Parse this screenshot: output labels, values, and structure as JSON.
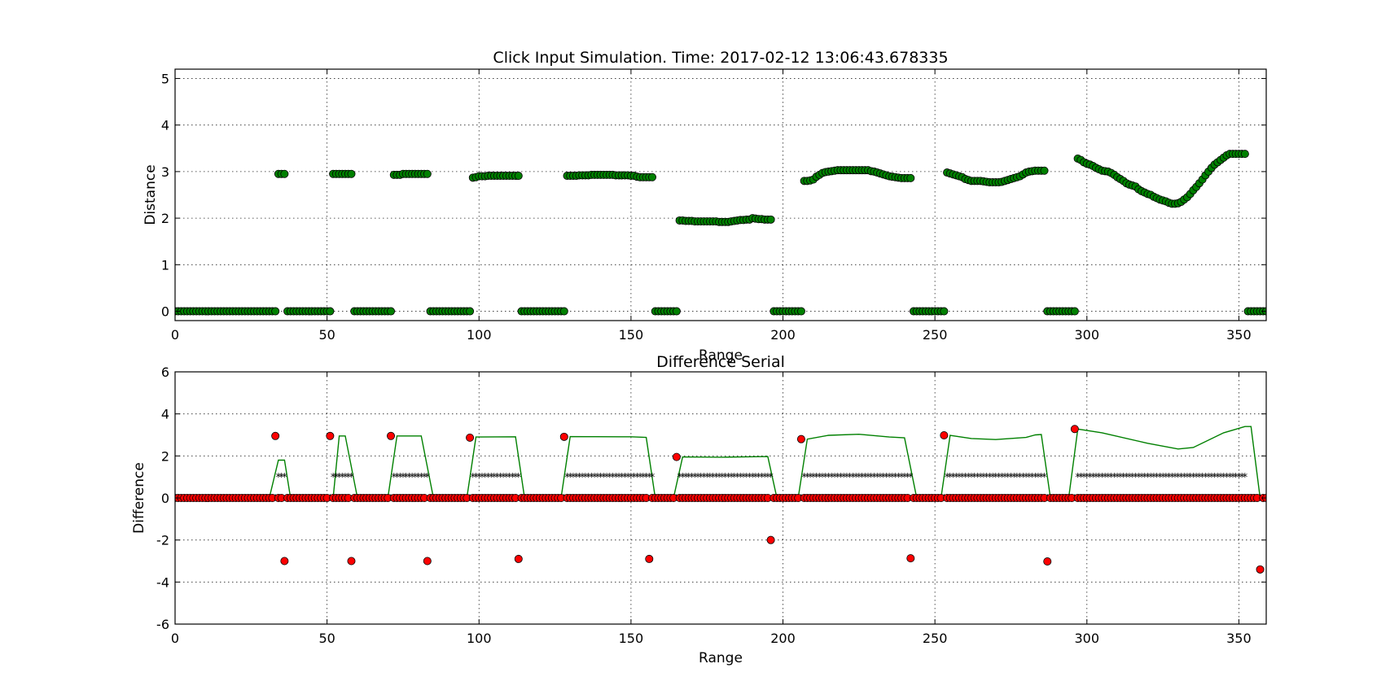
{
  "chart_data": [
    {
      "type": "scatter",
      "title": "Click Input Simulation. Time: 2017-02-12 13:06:43.678335",
      "xlabel": "Range",
      "ylabel": "Distance",
      "xlim": [
        0,
        359
      ],
      "ylim": [
        -0.2,
        5.2
      ],
      "xticks": [
        0,
        50,
        100,
        150,
        200,
        250,
        300,
        350
      ],
      "yticks": [
        0,
        1,
        2,
        3,
        4,
        5
      ],
      "grid": true,
      "series": [
        {
          "marker_color": "#008000",
          "segments": [
            {
              "kind": "const",
              "x0": 0,
              "x1": 33,
              "y": 0
            },
            {
              "kind": "const",
              "x0": 34,
              "x1": 36,
              "y": 2.95
            },
            {
              "kind": "const",
              "x0": 37,
              "x1": 51,
              "y": 0
            },
            {
              "kind": "const",
              "x0": 52,
              "x1": 58,
              "y": 2.95
            },
            {
              "kind": "const",
              "x0": 59,
              "x1": 71,
              "y": 0
            },
            {
              "kind": "points",
              "x0": 72,
              "y": [
                2.93,
                2.93,
                2.93,
                2.95,
                2.95,
                2.95,
                2.95,
                2.95,
                2.95,
                2.95,
                2.95,
                2.95
              ]
            },
            {
              "kind": "const",
              "x0": 84,
              "x1": 97,
              "y": 0
            },
            {
              "kind": "points",
              "x0": 98,
              "y": [
                2.87,
                2.88,
                2.9,
                2.9,
                2.9,
                2.91,
                2.91,
                2.91,
                2.91,
                2.91,
                2.91,
                2.91,
                2.91,
                2.91,
                2.91,
                2.91
              ]
            },
            {
              "kind": "const",
              "x0": 114,
              "x1": 128,
              "y": 0
            },
            {
              "kind": "points",
              "x0": 129,
              "y": [
                2.91,
                2.91,
                2.91,
                2.91,
                2.92,
                2.92,
                2.92,
                2.92,
                2.93,
                2.93,
                2.93,
                2.93,
                2.93,
                2.93,
                2.93,
                2.93,
                2.92,
                2.92,
                2.92,
                2.92,
                2.92,
                2.91,
                2.91,
                2.89,
                2.88,
                2.88,
                2.88,
                2.88,
                2.88
              ]
            },
            {
              "kind": "const",
              "x0": 158,
              "x1": 165,
              "y": 0
            },
            {
              "kind": "points",
              "x0": 166,
              "y": [
                1.95,
                1.95,
                1.94,
                1.94,
                1.94,
                1.93,
                1.93,
                1.93,
                1.93,
                1.93,
                1.93,
                1.93,
                1.93,
                1.92,
                1.92,
                1.92,
                1.92,
                1.93,
                1.94,
                1.95,
                1.96,
                1.96,
                1.97,
                1.97,
                2.0,
                1.99,
                1.98,
                1.98,
                1.97,
                1.97,
                1.97
              ]
            },
            {
              "kind": "const",
              "x0": 197,
              "x1": 206,
              "y": 0
            },
            {
              "kind": "points",
              "x0": 207,
              "y": [
                2.8,
                2.8,
                2.81,
                2.83,
                2.89,
                2.93,
                2.97,
                2.99,
                3.0,
                3.01,
                3.02,
                3.03,
                3.03,
                3.03,
                3.03,
                3.03,
                3.03,
                3.03,
                3.03,
                3.03,
                3.03,
                3.03,
                3.01,
                3.0,
                2.98,
                2.96,
                2.94,
                2.92,
                2.9,
                2.89,
                2.88,
                2.87,
                2.86,
                2.86,
                2.86,
                2.86
              ]
            },
            {
              "kind": "const",
              "x0": 243,
              "x1": 253,
              "y": 0
            },
            {
              "kind": "points",
              "x0": 254,
              "y": [
                2.98,
                2.96,
                2.94,
                2.92,
                2.9,
                2.88,
                2.84,
                2.82,
                2.8,
                2.8,
                2.8,
                2.8,
                2.79,
                2.78,
                2.77,
                2.77,
                2.77,
                2.77,
                2.78,
                2.8,
                2.82,
                2.84,
                2.86,
                2.88,
                2.9,
                2.94,
                2.98,
                3.0,
                3.01,
                3.02,
                3.02,
                3.02,
                3.02
              ]
            },
            {
              "kind": "const",
              "x0": 287,
              "x1": 296,
              "y": 0
            },
            {
              "kind": "points",
              "x0": 297,
              "y": [
                3.28,
                3.25,
                3.2,
                3.17,
                3.15,
                3.12,
                3.08,
                3.05,
                3.02,
                3.01,
                3.0,
                2.97,
                2.93,
                2.88,
                2.84,
                2.8,
                2.75,
                2.72,
                2.7,
                2.68,
                2.62,
                2.58,
                2.55,
                2.52,
                2.5,
                2.46,
                2.43,
                2.4,
                2.38,
                2.36,
                2.33,
                2.31,
                2.31,
                2.32,
                2.35,
                2.4,
                2.45,
                2.52,
                2.6,
                2.67,
                2.75,
                2.83,
                2.92,
                3.0,
                3.08,
                3.15,
                3.2,
                3.25,
                3.3,
                3.35,
                3.38,
                3.38,
                3.38,
                3.38,
                3.38,
                3.38
              ]
            },
            {
              "kind": "const",
              "x0": 353,
              "x1": 359,
              "y": 0
            }
          ]
        }
      ]
    },
    {
      "type": "scatter",
      "title": "Difference Serial",
      "xlabel": "Range",
      "ylabel": "Difference",
      "xlim": [
        0,
        359
      ],
      "ylim": [
        -6,
        6
      ],
      "xticks": [
        0,
        50,
        100,
        150,
        200,
        250,
        300,
        350
      ],
      "yticks": [
        -6,
        -4,
        -2,
        0,
        2,
        4,
        6
      ],
      "grid": true,
      "series": [
        {
          "kind": "line",
          "color": "#008000",
          "points": [
            [
              0,
              0
            ],
            [
              31,
              0
            ],
            [
              34,
              1.8
            ],
            [
              36,
              1.8
            ],
            [
              38,
              0
            ],
            [
              52,
              0
            ],
            [
              54,
              2.95
            ],
            [
              56,
              2.95
            ],
            [
              60,
              0
            ],
            [
              70,
              0
            ],
            [
              73,
              2.95
            ],
            [
              81,
              2.95
            ],
            [
              85,
              0
            ],
            [
              96,
              0
            ],
            [
              99,
              2.9
            ],
            [
              112,
              2.91
            ],
            [
              115,
              0
            ],
            [
              127,
              0
            ],
            [
              130,
              2.92
            ],
            [
              150,
              2.91
            ],
            [
              155,
              2.88
            ],
            [
              158,
              0
            ],
            [
              164,
              0
            ],
            [
              167,
              1.95
            ],
            [
              180,
              1.94
            ],
            [
              195,
              1.97
            ],
            [
              198,
              0
            ],
            [
              205,
              0
            ],
            [
              208,
              2.8
            ],
            [
              215,
              2.98
            ],
            [
              225,
              3.03
            ],
            [
              235,
              2.9
            ],
            [
              240,
              2.86
            ],
            [
              244,
              0
            ],
            [
              252,
              0
            ],
            [
              255,
              2.98
            ],
            [
              262,
              2.83
            ],
            [
              270,
              2.78
            ],
            [
              280,
              2.88
            ],
            [
              283,
              3.0
            ],
            [
              285,
              3.02
            ],
            [
              288,
              0
            ],
            [
              294,
              0
            ],
            [
              297,
              3.28
            ],
            [
              305,
              3.1
            ],
            [
              320,
              2.6
            ],
            [
              330,
              2.33
            ],
            [
              335,
              2.4
            ],
            [
              345,
              3.1
            ],
            [
              352,
              3.4
            ],
            [
              354,
              3.4
            ],
            [
              357,
              0
            ],
            [
              359,
              0
            ]
          ]
        },
        {
          "kind": "markers",
          "marker": "star",
          "color": "#000080",
          "segments": [
            {
              "x0": 0,
              "x1": 33,
              "y": 0
            },
            {
              "x0": 34,
              "x1": 36,
              "y": 1
            },
            {
              "x0": 37,
              "x1": 51,
              "y": 0
            },
            {
              "x0": 52,
              "x1": 58,
              "y": 1
            },
            {
              "x0": 59,
              "x1": 71,
              "y": 0
            },
            {
              "x0": 72,
              "x1": 83,
              "y": 1
            },
            {
              "x0": 84,
              "x1": 97,
              "y": 0
            },
            {
              "x0": 98,
              "x1": 113,
              "y": 1
            },
            {
              "x0": 114,
              "x1": 128,
              "y": 0
            },
            {
              "x0": 129,
              "x1": 157,
              "y": 1
            },
            {
              "x0": 158,
              "x1": 165,
              "y": 0
            },
            {
              "x0": 166,
              "x1": 196,
              "y": 1
            },
            {
              "x0": 197,
              "x1": 206,
              "y": 0
            },
            {
              "x0": 207,
              "x1": 242,
              "y": 1
            },
            {
              "x0": 243,
              "x1": 253,
              "y": 0
            },
            {
              "x0": 254,
              "x1": 286,
              "y": 1
            },
            {
              "x0": 287,
              "x1": 296,
              "y": 0
            },
            {
              "x0": 297,
              "x1": 352,
              "y": 1
            },
            {
              "x0": 353,
              "x1": 359,
              "y": 0
            }
          ]
        },
        {
          "kind": "markers",
          "marker": "circle",
          "color": "#ff0000",
          "range": [
            0,
            359
          ],
          "baseline": 0,
          "spikes": [
            [
              33,
              2.95
            ],
            [
              36,
              -3.0
            ],
            [
              51,
              2.95
            ],
            [
              58,
              -3.0
            ],
            [
              71,
              2.95
            ],
            [
              83,
              -3.0
            ],
            [
              97,
              2.87
            ],
            [
              113,
              -2.9
            ],
            [
              128,
              2.91
            ],
            [
              156,
              -2.9
            ],
            [
              165,
              1.95
            ],
            [
              196,
              -2.0
            ],
            [
              206,
              2.8
            ],
            [
              242,
              -2.87
            ],
            [
              253,
              2.98
            ],
            [
              287,
              -3.02
            ],
            [
              296,
              3.28
            ],
            [
              357,
              -3.4
            ]
          ]
        }
      ]
    }
  ]
}
